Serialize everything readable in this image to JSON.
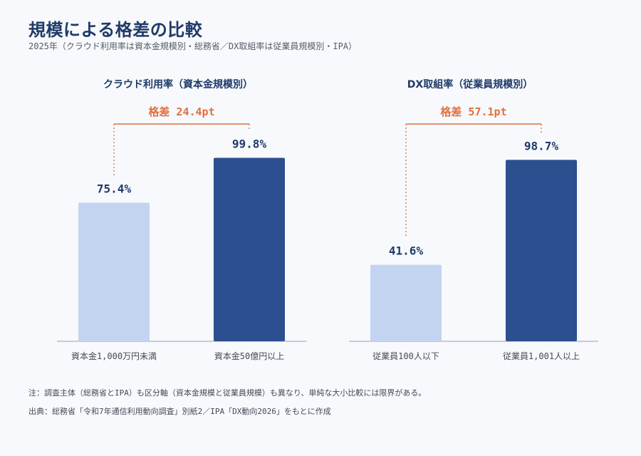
{
  "header": {
    "title": "規模による格差の比較",
    "subtitle": "2025年（クラウド利用率は資本金規模別・総務省／DX取組率は従業員規模別・IPA）"
  },
  "colors": {
    "light_bar": "#c3d4f0",
    "dark_bar": "#2c4f8f",
    "gap_accent": "#e07040",
    "label_text": "#1f3a68",
    "baseline": "#b8bcc4"
  },
  "chart_data": [
    {
      "type": "bar",
      "title": "クラウド利用率（資本金規模別）",
      "categories": [
        "資本金1,000万円未満",
        "資本金50億円以上"
      ],
      "values": [
        75.4,
        99.8
      ],
      "value_labels": [
        "75.4%",
        "99.8%"
      ],
      "gap_label": "格差 24.4pt",
      "ylim": [
        0,
        100
      ],
      "grid": false
    },
    {
      "type": "bar",
      "title": "DX取組率（従業員規模別）",
      "categories": [
        "従業員100人以下",
        "従業員1,001人以上"
      ],
      "values": [
        41.6,
        98.7
      ],
      "value_labels": [
        "41.6%",
        "98.7%"
      ],
      "gap_label": "格差 57.1pt",
      "ylim": [
        0,
        100
      ],
      "grid": false
    }
  ],
  "footer": {
    "note": "注：調査主体（総務省とIPA）も区分軸（資本金規模と従業員規模）も異なり、単純な大小比較には限界がある。",
    "source": "出典：総務省「令和7年通信利用動向調査」別紙2／IPA「DX動向2026」をもとに作成"
  }
}
